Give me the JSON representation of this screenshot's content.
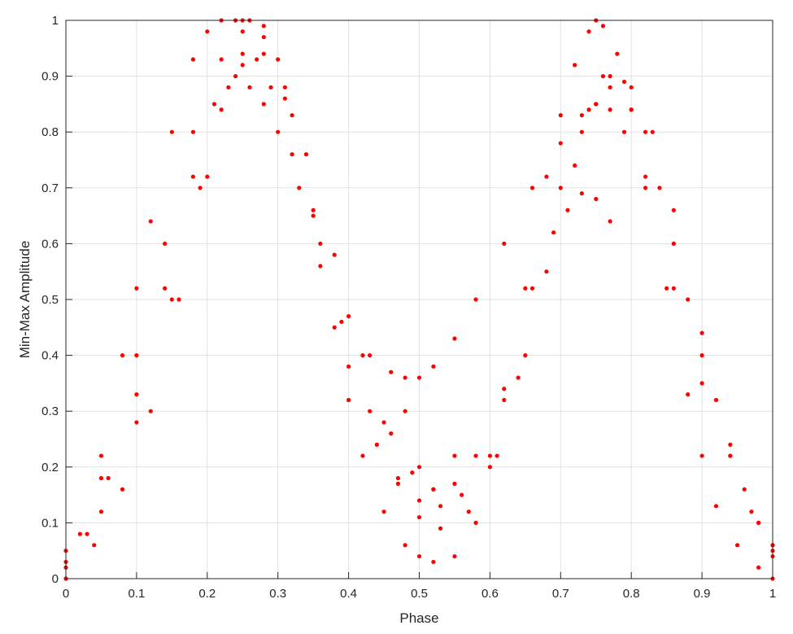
{
  "chart_data": {
    "type": "scatter",
    "title": "",
    "xlabel": "Phase",
    "ylabel": "Min-Max Amplitude",
    "xlim": [
      0,
      1
    ],
    "ylim": [
      0,
      1
    ],
    "xticks": [
      "0",
      "0.1",
      "0.2",
      "0.3",
      "0.4",
      "0.5",
      "0.6",
      "0.7",
      "0.8",
      "0.9",
      "1"
    ],
    "yticks": [
      "0",
      "0.1",
      "0.2",
      "0.3",
      "0.4",
      "0.5",
      "0.6",
      "0.7",
      "0.8",
      "0.9",
      "1"
    ],
    "grid": true,
    "marker_color": "#ff0000",
    "series": [
      {
        "x": [
          0.0,
          0.02,
          0.05,
          0.08,
          0.1,
          0.12,
          0.15,
          0.18,
          0.2,
          0.22,
          0.24,
          0.25,
          0.26,
          0.28,
          0.3,
          0.32,
          0.35,
          0.38,
          0.4,
          0.42,
          0.45,
          0.48,
          0.5,
          0.52,
          0.55,
          0.58,
          0.6,
          0.62,
          0.65,
          0.68,
          0.7,
          0.72,
          0.74,
          0.75,
          0.76,
          0.78,
          0.8,
          0.82,
          0.85,
          0.88,
          0.9,
          0.92,
          0.95,
          0.98,
          1.0
        ],
        "y": [
          0.0,
          0.08,
          0.22,
          0.4,
          0.52,
          0.64,
          0.8,
          0.93,
          0.98,
          1.0,
          1.0,
          1.0,
          1.0,
          0.99,
          0.93,
          0.83,
          0.65,
          0.45,
          0.32,
          0.22,
          0.12,
          0.06,
          0.04,
          0.03,
          0.04,
          0.1,
          0.2,
          0.32,
          0.52,
          0.72,
          0.83,
          0.92,
          0.98,
          1.0,
          0.99,
          0.94,
          0.84,
          0.72,
          0.52,
          0.33,
          0.22,
          0.13,
          0.06,
          0.02,
          0.0
        ]
      },
      {
        "x": [
          0.0,
          0.03,
          0.06,
          0.1,
          0.14,
          0.18,
          0.21,
          0.24,
          0.26,
          0.28,
          0.3,
          0.33,
          0.36,
          0.4,
          0.43,
          0.46,
          0.48,
          0.5,
          0.52,
          0.55,
          0.58,
          0.62,
          0.66,
          0.7,
          0.73,
          0.75,
          0.77,
          0.79,
          0.82,
          0.86,
          0.9,
          0.94,
          0.98,
          1.0
        ],
        "y": [
          0.02,
          0.08,
          0.18,
          0.33,
          0.52,
          0.72,
          0.85,
          0.9,
          0.88,
          0.85,
          0.8,
          0.7,
          0.6,
          0.47,
          0.4,
          0.37,
          0.36,
          0.36,
          0.38,
          0.43,
          0.5,
          0.6,
          0.7,
          0.78,
          0.83,
          0.85,
          0.84,
          0.8,
          0.7,
          0.52,
          0.35,
          0.22,
          0.1,
          0.05
        ]
      },
      {
        "x": [
          0.0,
          0.04,
          0.08,
          0.12,
          0.16,
          0.2,
          0.23,
          0.25,
          0.27,
          0.29,
          0.32,
          0.36,
          0.4,
          0.44,
          0.47,
          0.5,
          0.53,
          0.56,
          0.6,
          0.64,
          0.68,
          0.72,
          0.75,
          0.77,
          0.8,
          0.84,
          0.88,
          0.92,
          0.96,
          1.0
        ],
        "y": [
          0.0,
          0.06,
          0.16,
          0.3,
          0.5,
          0.72,
          0.88,
          0.94,
          0.93,
          0.88,
          0.76,
          0.56,
          0.38,
          0.24,
          0.17,
          0.14,
          0.13,
          0.15,
          0.22,
          0.36,
          0.55,
          0.74,
          0.85,
          0.88,
          0.84,
          0.7,
          0.5,
          0.32,
          0.16,
          0.06
        ]
      },
      {
        "x": [
          0.0,
          0.05,
          0.1,
          0.15,
          0.19,
          0.22,
          0.25,
          0.28,
          0.31,
          0.34,
          0.38,
          0.42,
          0.46,
          0.49,
          0.52,
          0.55,
          0.58,
          0.62,
          0.66,
          0.7,
          0.74,
          0.77,
          0.8,
          0.83,
          0.86,
          0.9,
          0.94,
          0.97,
          1.0
        ],
        "y": [
          0.03,
          0.12,
          0.28,
          0.5,
          0.7,
          0.84,
          0.92,
          0.94,
          0.88,
          0.76,
          0.58,
          0.4,
          0.26,
          0.19,
          0.16,
          0.17,
          0.22,
          0.34,
          0.52,
          0.7,
          0.84,
          0.9,
          0.88,
          0.8,
          0.66,
          0.44,
          0.24,
          0.12,
          0.04
        ]
      },
      {
        "x": [
          0.0,
          0.05,
          0.1,
          0.14,
          0.18,
          0.22,
          0.25,
          0.28,
          0.31,
          0.35,
          0.39,
          0.43,
          0.47,
          0.5,
          0.53,
          0.57,
          0.61,
          0.65,
          0.69,
          0.73,
          0.76,
          0.79,
          0.82,
          0.86,
          0.9,
          0.94,
          0.98,
          1.0
        ],
        "y": [
          0.05,
          0.18,
          0.4,
          0.6,
          0.8,
          0.93,
          0.98,
          0.97,
          0.86,
          0.66,
          0.46,
          0.3,
          0.18,
          0.11,
          0.09,
          0.12,
          0.22,
          0.4,
          0.62,
          0.8,
          0.9,
          0.89,
          0.8,
          0.6,
          0.4,
          0.22,
          0.1,
          0.06
        ]
      },
      {
        "x": [
          0.45,
          0.48,
          0.5,
          0.52,
          0.55
        ],
        "y": [
          0.28,
          0.3,
          0.2,
          0.16,
          0.22
        ]
      },
      {
        "x": [
          0.71,
          0.73,
          0.75,
          0.77
        ],
        "y": [
          0.66,
          0.69,
          0.68,
          0.64
        ]
      }
    ]
  }
}
